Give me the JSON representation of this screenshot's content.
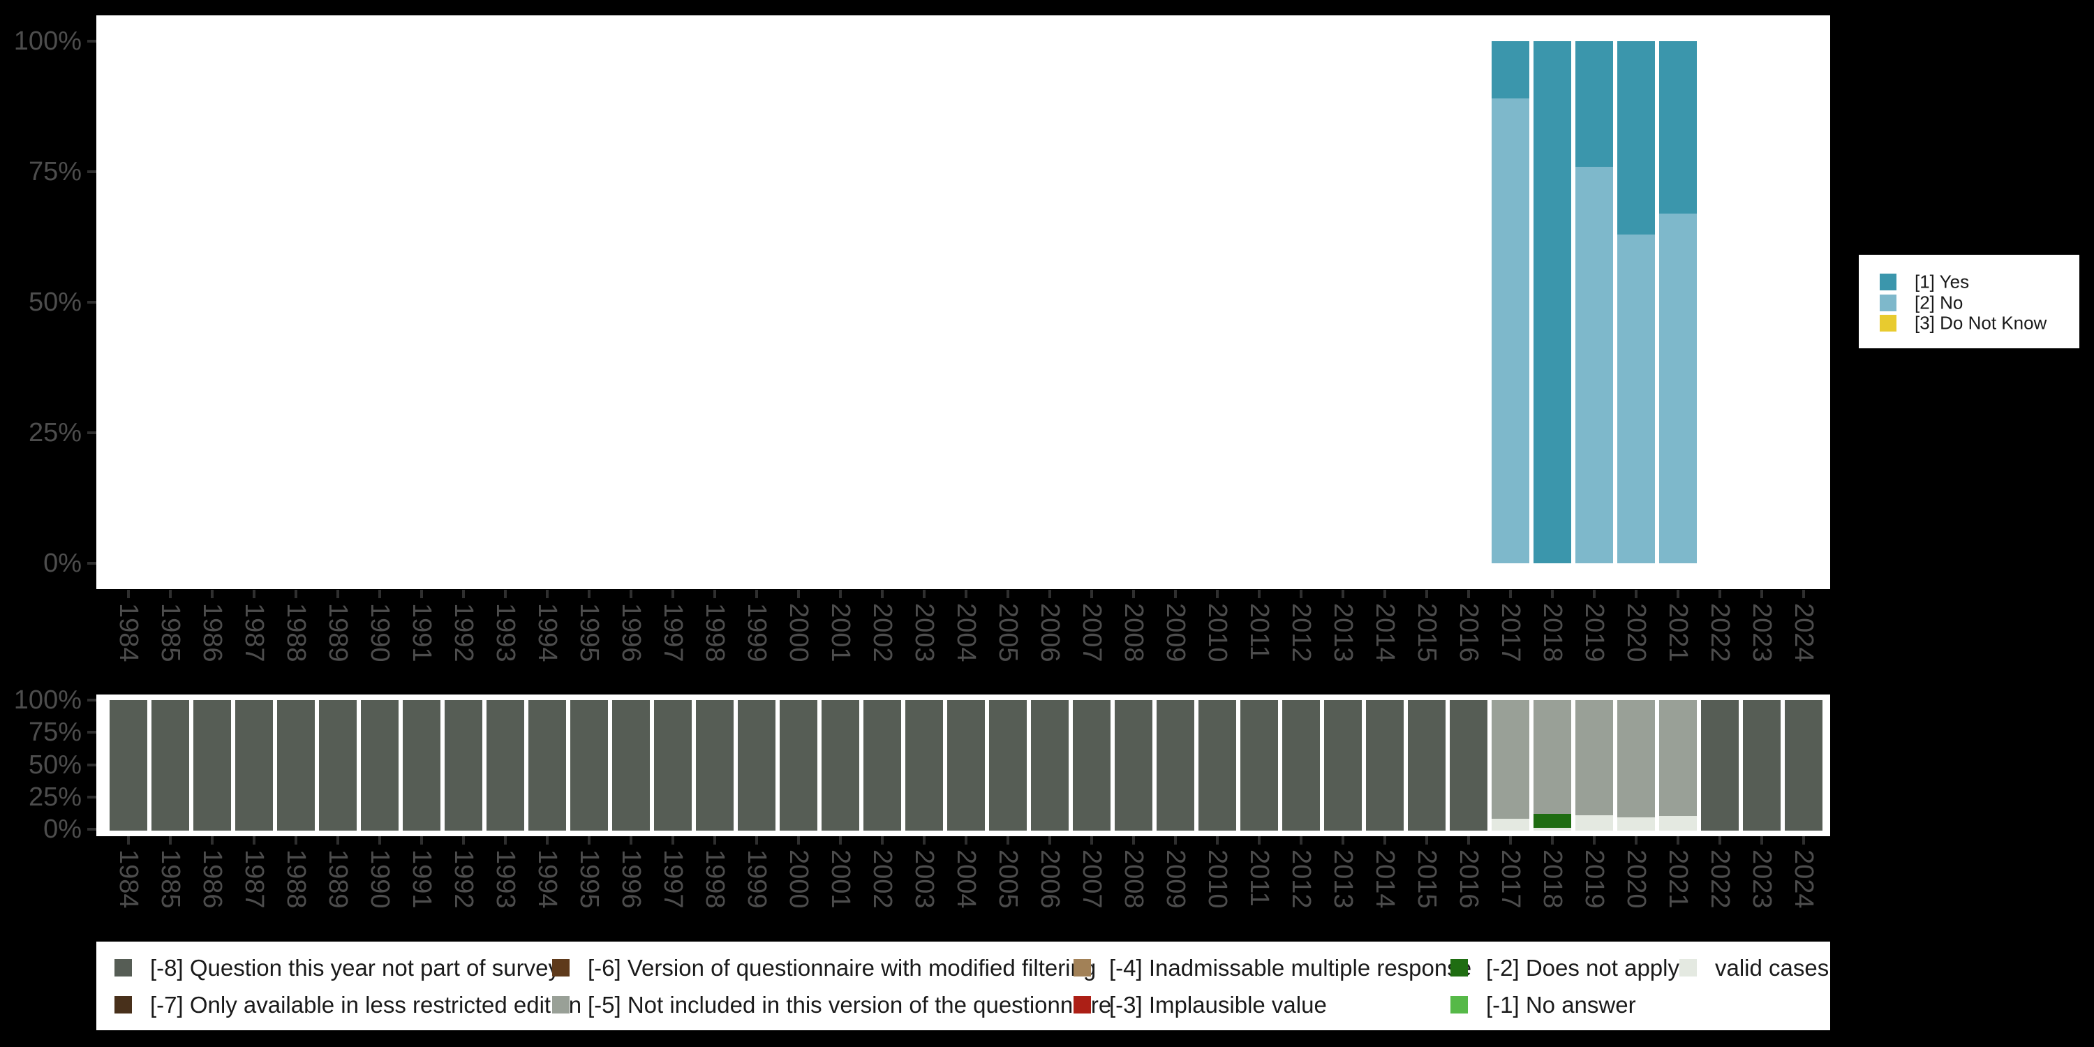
{
  "figure": {
    "background_color": "#000000",
    "panel_color": "#ffffff",
    "axis_text_color": "#4d4d4d",
    "axis_tick_color": "#2f2f2f",
    "legend_text_color": "#1a1a1a"
  },
  "years": [
    "1984",
    "1985",
    "1986",
    "1987",
    "1988",
    "1989",
    "1990",
    "1991",
    "1992",
    "1993",
    "1994",
    "1995",
    "1996",
    "1997",
    "1998",
    "1999",
    "2000",
    "2001",
    "2002",
    "2003",
    "2004",
    "2005",
    "2006",
    "2007",
    "2008",
    "2009",
    "2010",
    "2011",
    "2012",
    "2013",
    "2014",
    "2015",
    "2016",
    "2017",
    "2018",
    "2019",
    "2020",
    "2021",
    "2022",
    "2023",
    "2024"
  ],
  "y_tick_labels": [
    "100%",
    "75%",
    "50%",
    "25%",
    "0%"
  ],
  "colors": {
    "yes": "#3B96AC",
    "no": "#7EB8CB",
    "dnk": "#E8CB2F",
    "-8": "#565D55",
    "-7": "#48301B",
    "-6": "#5E3A1B",
    "-5": "#99A097",
    "-4": "#A28157",
    "-3": "#AC1F16",
    "-2": "#1F6D12",
    "-1": "#56B948",
    "valid": "#E4E9E1"
  },
  "top_legend": {
    "items": [
      {
        "key": "yes",
        "label": "[1] Yes"
      },
      {
        "key": "no",
        "label": "[2] No"
      },
      {
        "key": "dnk",
        "label": "[3] Do Not Know"
      }
    ]
  },
  "missing_legend": {
    "rows": [
      [
        {
          "key": "-8",
          "label": "[-8] Question this year not part of survey"
        },
        {
          "key": "-6",
          "label": "[-6] Version of questionnaire with modified filtering"
        },
        {
          "key": "-4",
          "label": "[-4] Inadmissable multiple response"
        },
        {
          "key": "-2",
          "label": "[-2] Does not apply"
        },
        {
          "key": "valid",
          "label": "valid cases"
        }
      ],
      [
        {
          "key": "-7",
          "label": "[-7] Only available in less restricted edition"
        },
        {
          "key": "-5",
          "label": "[-5] Not included in this version of the questionnaire"
        },
        {
          "key": "-3",
          "label": "[-3] Implausible value"
        },
        {
          "key": "-1",
          "label": "[-1] No answer"
        }
      ]
    ]
  },
  "chart_data": [
    {
      "type": "bar",
      "stacked": true,
      "units": "percent",
      "title": "",
      "xlabel": "",
      "ylabel": "",
      "ylim": [
        0,
        100
      ],
      "grid": false,
      "legend_position": "right",
      "categories": [
        "1984",
        "1985",
        "1986",
        "1987",
        "1988",
        "1989",
        "1990",
        "1991",
        "1992",
        "1993",
        "1994",
        "1995",
        "1996",
        "1997",
        "1998",
        "1999",
        "2000",
        "2001",
        "2002",
        "2003",
        "2004",
        "2005",
        "2006",
        "2007",
        "2008",
        "2009",
        "2010",
        "2011",
        "2012",
        "2013",
        "2014",
        "2015",
        "2016",
        "2017",
        "2018",
        "2019",
        "2020",
        "2021",
        "2022",
        "2023",
        "2024"
      ],
      "series": [
        {
          "name": "[1] Yes",
          "key": "yes",
          "values_by_year": {
            "2017": 11,
            "2018": 100,
            "2019": 24,
            "2020": 37,
            "2021": 33
          }
        },
        {
          "name": "[2] No",
          "key": "no",
          "values_by_year": {
            "2017": 89,
            "2018": 0,
            "2019": 76,
            "2020": 63,
            "2021": 67
          }
        },
        {
          "name": "[3] Do Not Know",
          "key": "dnk",
          "values_by_year": {
            "2017": 0,
            "2018": 0,
            "2019": 0,
            "2020": 0,
            "2021": 0
          }
        }
      ],
      "note": "Years 1984-2016 and 2022-2024 have no bars (variable not surveyed).",
      "bars_top_to_bottom": {
        "2017": [
          {
            "key": "yes",
            "value": 11
          },
          {
            "key": "no",
            "value": 89
          }
        ],
        "2018": [
          {
            "key": "yes",
            "value": 100
          }
        ],
        "2019": [
          {
            "key": "yes",
            "value": 24
          },
          {
            "key": "no",
            "value": 76
          }
        ],
        "2020": [
          {
            "key": "yes",
            "value": 37
          },
          {
            "key": "no",
            "value": 63
          }
        ],
        "2021": [
          {
            "key": "yes",
            "value": 33
          },
          {
            "key": "no",
            "value": 67
          }
        ]
      }
    },
    {
      "type": "bar",
      "stacked": true,
      "units": "percent",
      "title": "",
      "xlabel": "",
      "ylabel": "",
      "ylim": [
        0,
        100
      ],
      "grid": false,
      "legend_position": "bottom",
      "categories": [
        "1984",
        "1985",
        "1986",
        "1987",
        "1988",
        "1989",
        "1990",
        "1991",
        "1992",
        "1993",
        "1994",
        "1995",
        "1996",
        "1997",
        "1998",
        "1999",
        "2000",
        "2001",
        "2002",
        "2003",
        "2004",
        "2005",
        "2006",
        "2007",
        "2008",
        "2009",
        "2010",
        "2011",
        "2012",
        "2013",
        "2014",
        "2015",
        "2016",
        "2017",
        "2018",
        "2019",
        "2020",
        "2021",
        "2022",
        "2023",
        "2024"
      ],
      "default_bar_top_to_bottom": [
        {
          "key": "-8",
          "value": 100
        }
      ],
      "note": "Missing-values overview; years not listed under bars_top_to_bottom are 100% [-8] Question this year not part of survey.",
      "bars_top_to_bottom": {
        "2017": [
          {
            "key": "-5",
            "value": 91
          },
          {
            "key": "valid",
            "value": 9
          }
        ],
        "2018": [
          {
            "key": "-5",
            "value": 87
          },
          {
            "key": "-2",
            "value": 11
          },
          {
            "key": "valid",
            "value": 2
          }
        ],
        "2019": [
          {
            "key": "-5",
            "value": 88
          },
          {
            "key": "valid",
            "value": 12
          }
        ],
        "2020": [
          {
            "key": "-5",
            "value": 90
          },
          {
            "key": "valid",
            "value": 10
          }
        ],
        "2021": [
          {
            "key": "-5",
            "value": 89
          },
          {
            "key": "valid",
            "value": 11
          }
        ]
      }
    }
  ]
}
